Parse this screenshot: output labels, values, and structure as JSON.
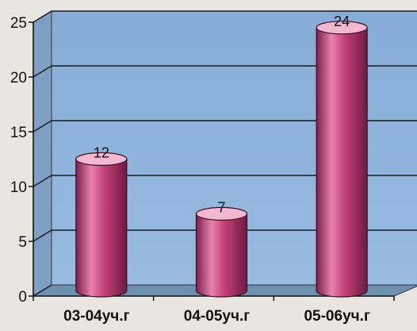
{
  "chart_data": {
    "type": "bar",
    "style": "3d-cylinder",
    "categories": [
      "03-04уч.г",
      "04-05уч.г",
      "05-06уч.г"
    ],
    "values": [
      12,
      7,
      24
    ],
    "data_labels": [
      "12",
      "7",
      "24"
    ],
    "ylim": [
      0,
      25
    ],
    "yticks": [
      0,
      5,
      10,
      15,
      20,
      25
    ],
    "grid": true,
    "legend": "none",
    "title": "",
    "xlabel": "",
    "ylabel": "",
    "colors": {
      "background": "#e9e6e2",
      "back_wall": "#8fb3db",
      "floor": "#6f8fb0",
      "grid": "#1a1a1a",
      "bar": "#c4427a",
      "bar_light": "#e783ad",
      "bar_dark": "#7e1f4e",
      "bar_top": "#f3b7cf"
    }
  }
}
